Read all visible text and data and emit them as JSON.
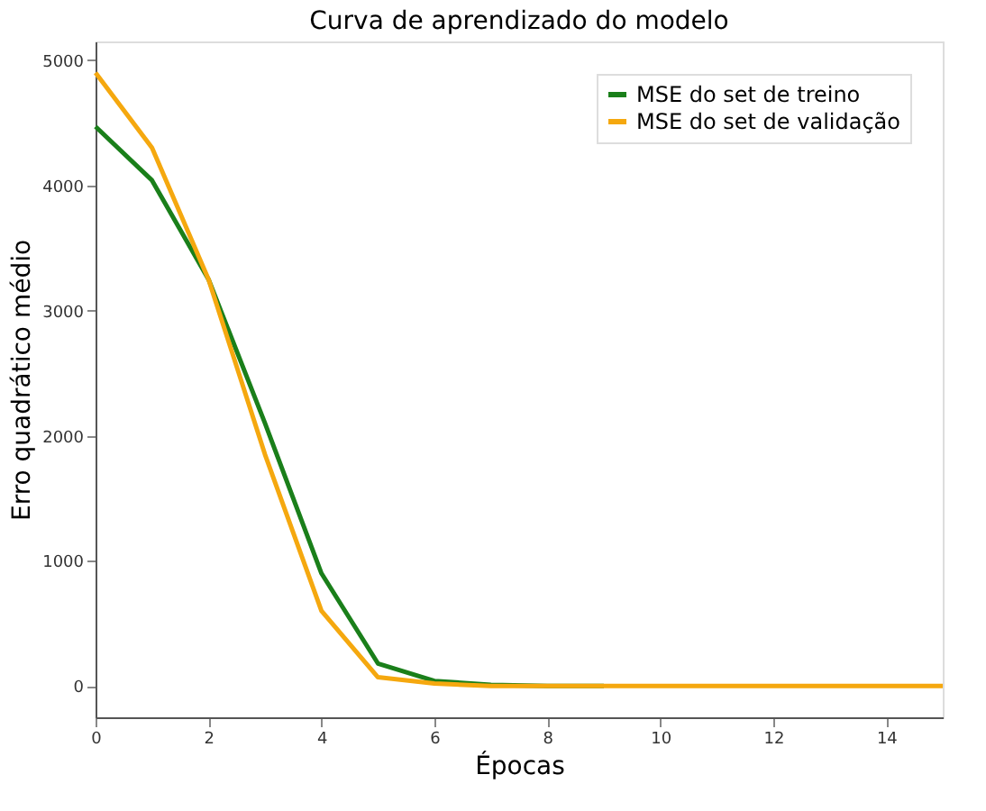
{
  "chart_data": {
    "type": "line",
    "title": "Curva de aprendizado do modelo",
    "xlabel": "Épocas",
    "ylabel": "Erro quadrático médio",
    "x": [
      0,
      1,
      2,
      3,
      4,
      5,
      6,
      7,
      8,
      9,
      10,
      11,
      12,
      13,
      14,
      15
    ],
    "series": [
      {
        "name": "MSE do set de treino",
        "color": "#1a7f1a",
        "values": [
          4470,
          4040,
          3250,
          2100,
          900,
          180,
          40,
          10,
          0,
          0,
          null,
          null,
          null,
          null,
          null,
          null
        ]
      },
      {
        "name": "MSE do set de validação",
        "color": "#f5a80f",
        "values": [
          4900,
          4300,
          3250,
          1850,
          600,
          70,
          20,
          0,
          0,
          0,
          0,
          0,
          0,
          0,
          0,
          0
        ]
      }
    ],
    "xlim": [
      0,
      15
    ],
    "xticks": [
      0,
      2,
      4,
      6,
      8,
      10,
      12,
      14
    ],
    "ylim": [
      -250,
      5150
    ],
    "yticks": [
      0,
      1000,
      2000,
      3000,
      4000,
      5000
    ],
    "grid": false,
    "legend": "top right",
    "marker": "none",
    "line_style": "solid"
  }
}
